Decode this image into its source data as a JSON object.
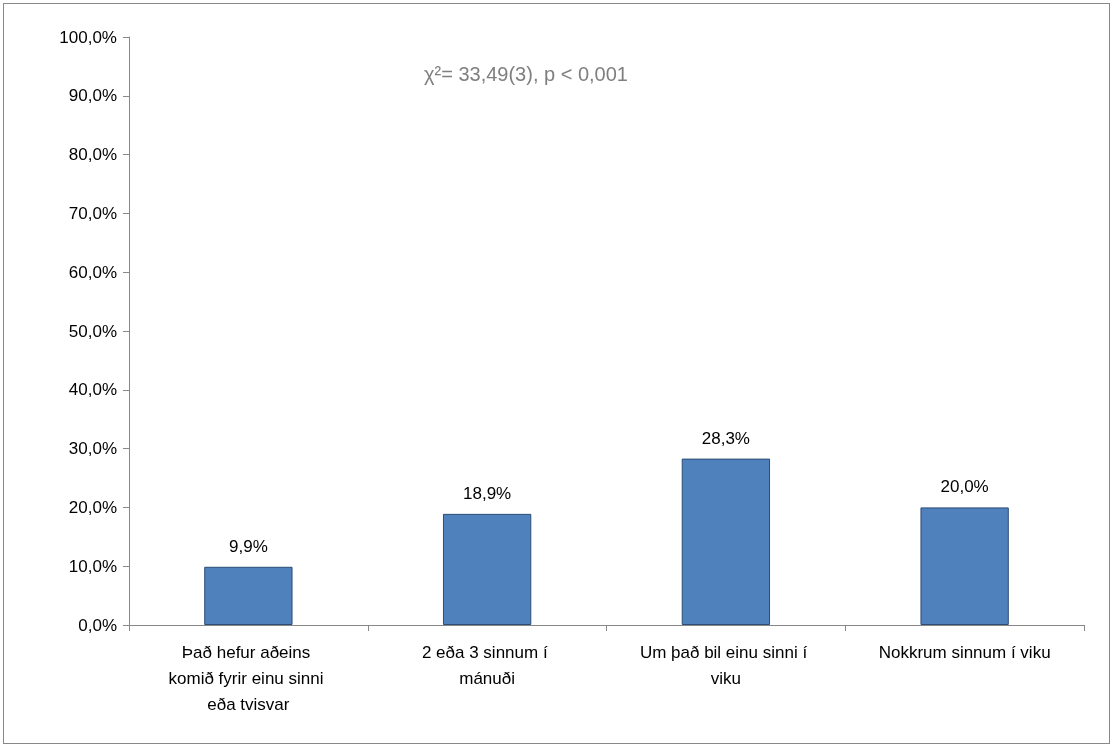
{
  "chart_data": {
    "type": "bar",
    "categories": [
      "Það hefur aðeins komið fyrir einu sinni eða tvisvar",
      "2 eða 3 sinnum í mánuði",
      "Um það bil einu sinni í viku",
      "Nokkrum sinnum í viku"
    ],
    "values": [
      9.9,
      18.9,
      28.3,
      20.0
    ],
    "value_labels": [
      "9,9%",
      "18,9%",
      "28,3%",
      "20,0%"
    ],
    "color": "#4f81bd",
    "ylim": [
      0,
      100
    ],
    "yticks": [
      {
        "value": 0,
        "label": "0,0%"
      },
      {
        "value": 10,
        "label": "10,0%"
      },
      {
        "value": 20,
        "label": "20,0%"
      },
      {
        "value": 30,
        "label": "30,0%"
      },
      {
        "value": 40,
        "label": "40,0%"
      },
      {
        "value": 50,
        "label": "50,0%"
      },
      {
        "value": 60,
        "label": "60,0%"
      },
      {
        "value": 70,
        "label": "70,0%"
      },
      {
        "value": 80,
        "label": "80,0%"
      },
      {
        "value": 90,
        "label": "90,0%"
      },
      {
        "value": 100,
        "label": "100,0%"
      }
    ],
    "annotations": [
      "χ²= 33,49(3), p < 0,001"
    ]
  }
}
